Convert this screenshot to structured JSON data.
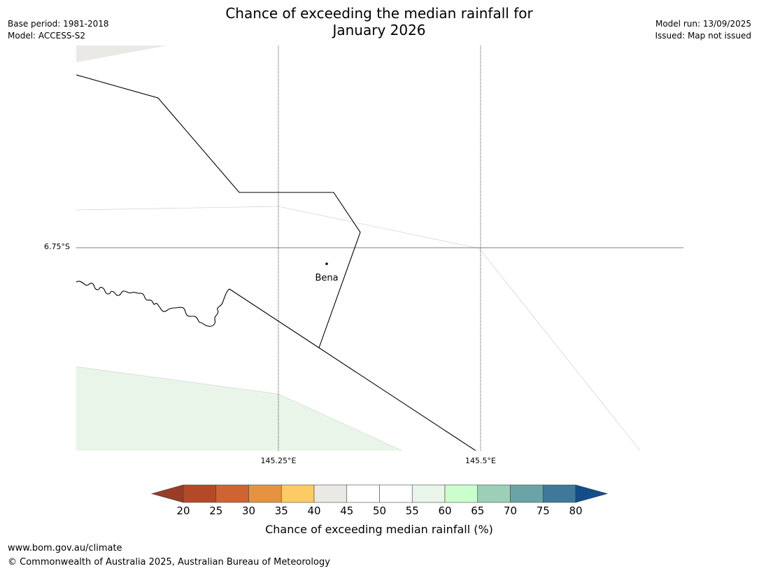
{
  "header": {
    "title_line1": "Chance of exceeding the median rainfall for",
    "title_line2": "January 2026",
    "base_period": "Base period: 1981-2018",
    "model": "Model: ACCESS-S2",
    "model_run": "Model run: 13/09/2025",
    "issued": "Issued: Map not issued"
  },
  "map": {
    "latitude_label": "6.75°S",
    "longitude_labels": [
      "145.25°E",
      "145.5°E"
    ],
    "place": {
      "name": "Bena"
    },
    "fill_colors": {
      "upper_left_patch": "#ebe9e6",
      "lower_left_patch": "#e9f5e9"
    }
  },
  "legend": {
    "title": "Chance of exceeding median rainfall (%)",
    "tick_labels": [
      "20",
      "25",
      "30",
      "35",
      "40",
      "45",
      "50",
      "55",
      "60",
      "65",
      "70",
      "75",
      "80"
    ],
    "under_color": "#9b3c27",
    "over_color": "#144e8a",
    "bins": [
      {
        "range": "20-25",
        "color": "#b34a27"
      },
      {
        "range": "25-30",
        "color": "#cd6431"
      },
      {
        "range": "30-35",
        "color": "#e39342"
      },
      {
        "range": "35-40",
        "color": "#fdcb65"
      },
      {
        "range": "40-45",
        "color": "#ebe9e6"
      },
      {
        "range": "45-50",
        "color": "#ffffff"
      },
      {
        "range": "50-55",
        "color": "#ffffff"
      },
      {
        "range": "55-60",
        "color": "#e9f5e9"
      },
      {
        "range": "60-65",
        "color": "#cbfecd"
      },
      {
        "range": "65-70",
        "color": "#9ccfb8"
      },
      {
        "range": "70-75",
        "color": "#6ba4a7"
      },
      {
        "range": "75-80",
        "color": "#3f7898"
      }
    ]
  },
  "footer": {
    "url": "www.bom.gov.au/climate",
    "copyright": "© Commonwealth of Australia 2025, Australian Bureau of Meteorology"
  }
}
